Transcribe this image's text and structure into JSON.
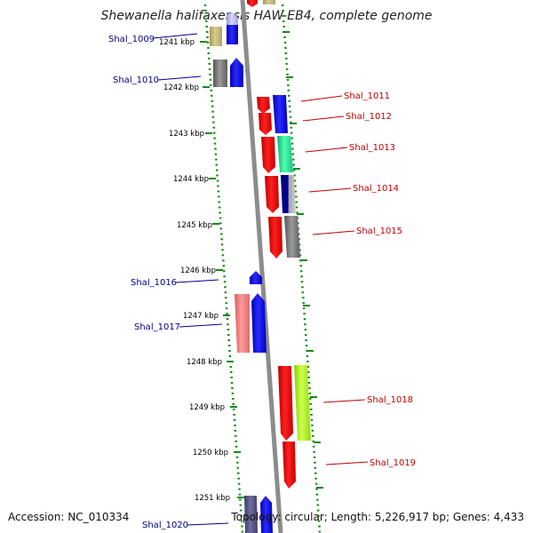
{
  "title": "Shewanella halifaxensis HAW-EB4, complete genome",
  "footer": {
    "accession": "Accession: NC_010334",
    "summary": "Topology: circular; Length: 5,226,917 bp; Genes: 4,433"
  },
  "ticks": [
    "1241 kbp",
    "1242 kbp",
    "1243 kbp",
    "1244 kbp",
    "1245 kbp",
    "1246 kbp",
    "1247 kbp",
    "1248 kbp",
    "1249 kbp",
    "1250 kbp",
    "1251 kbp"
  ],
  "gene_labels": {
    "reverse": [
      "Shal_1009",
      "Shal_1010",
      "Shal_1016",
      "Shal_1017",
      "Shal_1020"
    ],
    "forward": [
      "Shal_1011",
      "Shal_1012",
      "Shal_1013",
      "Shal_1014",
      "Shal_1015",
      "Shal_1018",
      "Shal_1019"
    ]
  },
  "colors": {
    "reverse_label": "#00008b",
    "forward_label": "#c00000",
    "backbone": "#8c8c8c",
    "tick_mark": "#138a13"
  }
}
